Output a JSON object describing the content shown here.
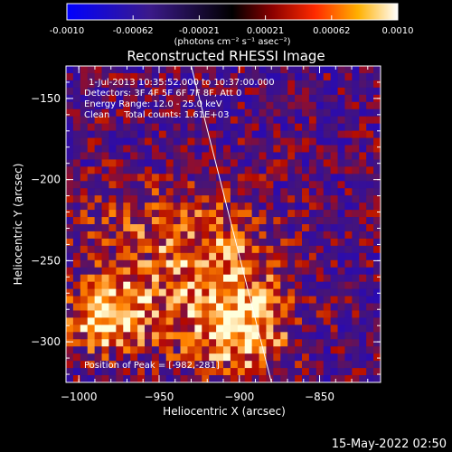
{
  "colorbar": {
    "tick_labels": [
      "-0.0010",
      "-0.00062",
      "-0.00021",
      "0.00021",
      "0.00062",
      "0.0010"
    ],
    "range": [
      -0.001,
      0.001
    ],
    "unit_label": "(photons cm⁻² s⁻¹ asec⁻²)"
  },
  "chart_data": {
    "type": "heatmap",
    "title": "Reconstructed RHESSI Image",
    "xlabel": "Heliocentric X (arcsec)",
    "ylabel": "Heliocentric Y (arcsec)",
    "xlim": [
      -1008,
      -812
    ],
    "ylim": [
      -325,
      -130
    ],
    "x_ticks": [
      -1000,
      -950,
      -900,
      -850
    ],
    "y_ticks": [
      -300,
      -250,
      -200,
      -150
    ],
    "annotations": {
      "time_range": "1-Jul-2013 10:35:52.000 to 10:37:00.000",
      "detectors": "Detectors: 3F 4F 5F 6F 7F 8F, Att 0",
      "energy_range": "Energy Range: 12.0 - 25.0 keV",
      "method_counts": "Clean     Total counts: 1.61E+03",
      "peak": "Position of Peak = [-982,-281]"
    },
    "limb_line": [
      [
        -930,
        -130
      ],
      [
        -880,
        -325
      ]
    ],
    "peak_position": [
      -982,
      -281
    ]
  },
  "timestamp": "15-May-2022 02:50"
}
